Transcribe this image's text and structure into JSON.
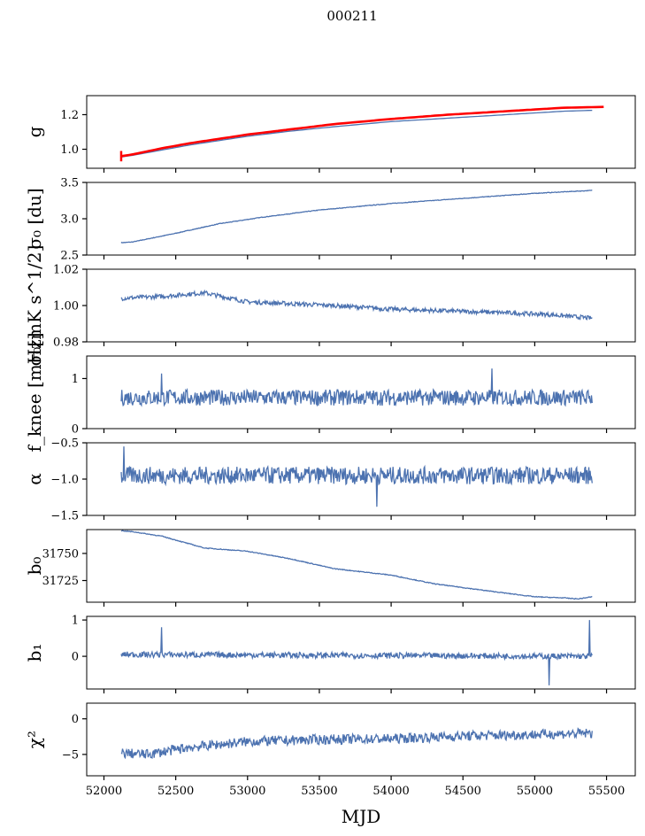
{
  "figure": {
    "title": "000211",
    "xlabel": "MJD"
  },
  "colors": {
    "series": "#4c72b0",
    "overlay": "#ff0000",
    "axes": "#000000"
  },
  "chart_data": [
    {
      "type": "line",
      "id": "g",
      "ylabel": "g",
      "yticks": [
        1.0,
        1.2
      ],
      "ylim": [
        0.89,
        1.31
      ],
      "series_points": [
        [
          52120,
          0.955
        ],
        [
          52200,
          0.965
        ],
        [
          52400,
          0.995
        ],
        [
          52600,
          1.025
        ],
        [
          52800,
          1.05
        ],
        [
          53000,
          1.075
        ],
        [
          53300,
          1.105
        ],
        [
          53600,
          1.13
        ],
        [
          54000,
          1.16
        ],
        [
          54400,
          1.18
        ],
        [
          54800,
          1.2
        ],
        [
          55200,
          1.22
        ],
        [
          55400,
          1.225
        ]
      ],
      "overlay_points": [
        [
          52120,
          0.96
        ],
        [
          52200,
          0.97
        ],
        [
          52400,
          1.005
        ],
        [
          52600,
          1.035
        ],
        [
          52800,
          1.06
        ],
        [
          53000,
          1.085
        ],
        [
          53300,
          1.115
        ],
        [
          53600,
          1.145
        ],
        [
          54000,
          1.175
        ],
        [
          54400,
          1.2
        ],
        [
          54800,
          1.22
        ],
        [
          55200,
          1.24
        ],
        [
          55480,
          1.245
        ]
      ],
      "noise": 0.0
    },
    {
      "type": "line",
      "id": "sigma0_du",
      "ylabel": "σ₀ [du]",
      "yticks": [
        2.5,
        3.0,
        3.5
      ],
      "ylim": [
        2.5,
        3.5
      ],
      "series_points": [
        [
          52120,
          2.67
        ],
        [
          52200,
          2.68
        ],
        [
          52500,
          2.8
        ],
        [
          52800,
          2.93
        ],
        [
          53100,
          3.02
        ],
        [
          53500,
          3.12
        ],
        [
          54000,
          3.21
        ],
        [
          54500,
          3.28
        ],
        [
          55000,
          3.35
        ],
        [
          55400,
          3.39
        ]
      ],
      "noise": 0.004
    },
    {
      "type": "line",
      "id": "sigma0_mk",
      "ylabel": "σ₀[mK s^1/2]",
      "yticks": [
        0.98,
        1.0,
        1.02
      ],
      "ylim": [
        0.98,
        1.02
      ],
      "series_points": [
        [
          52120,
          1.004
        ],
        [
          52400,
          1.005
        ],
        [
          52700,
          1.007
        ],
        [
          53000,
          1.002
        ],
        [
          53300,
          1.001
        ],
        [
          53600,
          1.0
        ],
        [
          54000,
          0.998
        ],
        [
          54400,
          0.997
        ],
        [
          54800,
          0.996
        ],
        [
          55100,
          0.995
        ],
        [
          55400,
          0.993
        ]
      ],
      "noise": 0.0012
    },
    {
      "type": "line",
      "id": "fknee",
      "ylabel": "f_knee [mHz]",
      "yticks": [
        0,
        1
      ],
      "ylim": [
        0,
        1.45
      ],
      "series_points": [
        [
          52120,
          0.62
        ],
        [
          55400,
          0.62
        ]
      ],
      "noise": 0.16,
      "spikes": [
        [
          52400,
          1.1
        ],
        [
          54700,
          1.2
        ]
      ]
    },
    {
      "type": "line",
      "id": "alpha",
      "ylabel": "α",
      "yticks": [
        -1.5,
        -1.0,
        -0.5
      ],
      "ylim": [
        -1.5,
        -0.5
      ],
      "series_points": [
        [
          52120,
          -0.95
        ],
        [
          55400,
          -0.95
        ]
      ],
      "noise": 0.12,
      "spikes": [
        [
          52140,
          -0.55
        ],
        [
          53900,
          -1.38
        ]
      ]
    },
    {
      "type": "line",
      "id": "b0",
      "ylabel": "b₀",
      "yticks": [
        31725,
        31750
      ],
      "ylim": [
        31705,
        31772
      ],
      "series_points": [
        [
          52120,
          31771
        ],
        [
          52200,
          31770
        ],
        [
          52400,
          31766
        ],
        [
          52700,
          31755
        ],
        [
          53000,
          31752
        ],
        [
          53300,
          31745
        ],
        [
          53600,
          31736
        ],
        [
          54000,
          31730
        ],
        [
          54300,
          31722
        ],
        [
          54700,
          31715
        ],
        [
          55000,
          31710
        ],
        [
          55200,
          31709
        ],
        [
          55300,
          31708
        ],
        [
          55400,
          31710
        ]
      ],
      "noise": 0.35
    },
    {
      "type": "line",
      "id": "b1",
      "ylabel": "b₁",
      "yticks": [
        0,
        1
      ],
      "ylim": [
        -0.9,
        1.1
      ],
      "series_points": [
        [
          52120,
          0.05
        ],
        [
          55400,
          0.0
        ]
      ],
      "noise": 0.08,
      "spikes": [
        [
          52400,
          0.8
        ],
        [
          55100,
          -0.8
        ],
        [
          55380,
          1.0
        ]
      ]
    },
    {
      "type": "line",
      "id": "chi2",
      "ylabel": "χ²",
      "yticks": [
        -5,
        0
      ],
      "ylim": [
        -8,
        2.2
      ],
      "series_points": [
        [
          52120,
          -4.8
        ],
        [
          52300,
          -5.0
        ],
        [
          52600,
          -4.0
        ],
        [
          53000,
          -3.2
        ],
        [
          53500,
          -2.9
        ],
        [
          54000,
          -2.8
        ],
        [
          54500,
          -2.4
        ],
        [
          55000,
          -2.2
        ],
        [
          55400,
          -2.0
        ]
      ],
      "noise": 0.7
    }
  ],
  "xticks": [
    52000,
    52500,
    53000,
    53500,
    54000,
    54500,
    55000,
    55500
  ],
  "xlim": [
    51880,
    55700
  ]
}
